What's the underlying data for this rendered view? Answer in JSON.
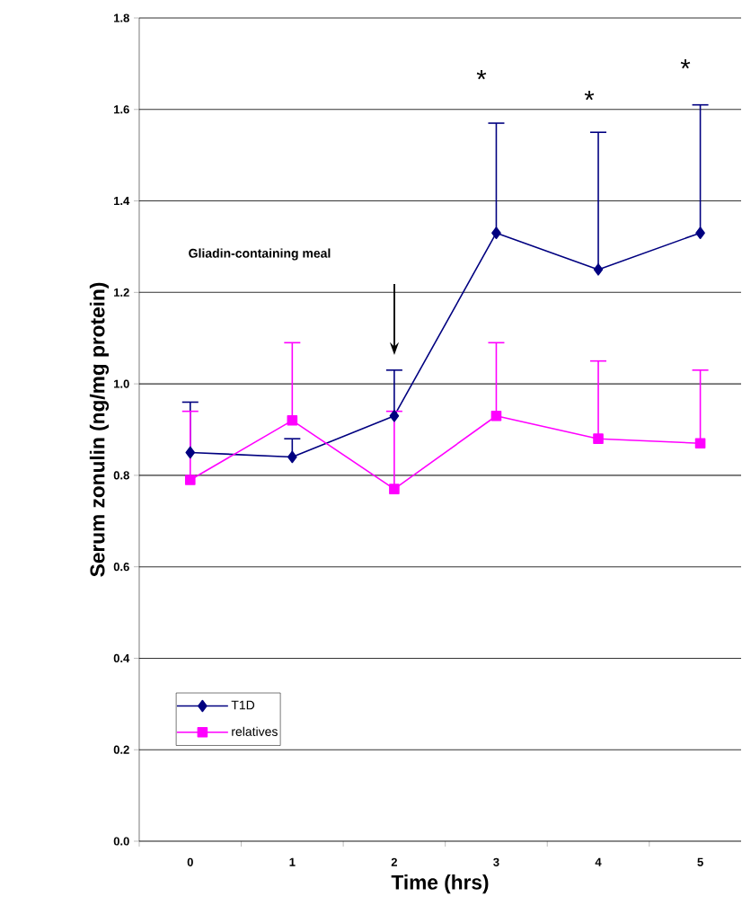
{
  "chart_data": {
    "type": "line",
    "xlabel": "Time (hrs)",
    "ylabel": "Serum zonulin (ng/mg protein)",
    "categories": [
      "0",
      "1",
      "2",
      "3",
      "4",
      "5"
    ],
    "series": [
      {
        "name": "T1D",
        "color": "#000080",
        "marker": "diamond",
        "values": [
          0.85,
          0.84,
          0.93,
          1.33,
          1.25,
          1.33
        ],
        "errors": [
          [
            0.85,
            0.96
          ],
          [
            0.84,
            0.88
          ],
          [
            0.93,
            1.03
          ],
          [
            1.33,
            1.57
          ],
          [
            1.25,
            1.55
          ],
          [
            1.33,
            1.61
          ]
        ]
      },
      {
        "name": "relatives",
        "color": "#ff00ff",
        "marker": "square",
        "values": [
          0.79,
          0.92,
          0.77,
          0.93,
          0.88,
          0.87
        ],
        "errors": [
          [
            0.79,
            0.94
          ],
          [
            0.92,
            1.09
          ],
          [
            0.77,
            0.94
          ],
          [
            0.93,
            1.09
          ],
          [
            0.88,
            1.05
          ],
          [
            0.87,
            1.03
          ]
        ]
      }
    ],
    "ylim": [
      0,
      1.8
    ],
    "yticks": [
      {
        "value": 0,
        "label": "0.0"
      },
      {
        "value": 0.2,
        "label": "0.2"
      },
      {
        "value": 0.4,
        "label": "0.4"
      },
      {
        "value": 0.6,
        "label": "0.6"
      },
      {
        "value": 0.8,
        "label": "0.8"
      },
      {
        "value": 1.0,
        "label": "1.0"
      },
      {
        "value": 1.2,
        "label": "1.2"
      },
      {
        "value": 1.4,
        "label": "1.4"
      },
      {
        "value": 1.6,
        "label": "1.6"
      },
      {
        "value": 1.8,
        "label": "1.8"
      }
    ],
    "grid": "y",
    "legend": "bottom left",
    "annotations": [
      "Gliadin-containing meal",
      "*",
      "*",
      "*"
    ]
  }
}
